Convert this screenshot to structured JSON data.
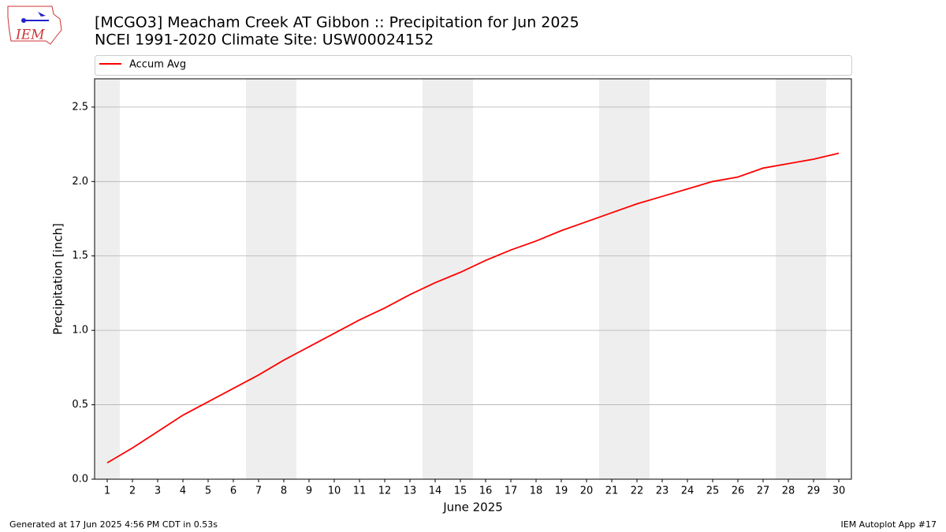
{
  "logo_text": "IEM",
  "footer_left": "Generated at 17 Jun 2025 4:56 PM CDT in 0.53s",
  "footer_right": "IEM Autoplot App #17",
  "chart_data": {
    "type": "line",
    "title": "[MCGO3] Meacham Creek  AT Gibbon :: Precipitation for Jun 2025",
    "subtitle": "NCEI 1991-2020 Climate Site: USW00024152",
    "xlabel": "June 2025",
    "ylabel": "Precipitation [inch]",
    "x": [
      1,
      2,
      3,
      4,
      5,
      6,
      7,
      8,
      9,
      10,
      11,
      12,
      13,
      14,
      15,
      16,
      17,
      18,
      19,
      20,
      21,
      22,
      23,
      24,
      25,
      26,
      27,
      28,
      29,
      30
    ],
    "series": [
      {
        "name": "Accum Avg",
        "color": "#ff0000",
        "values": [
          0.11,
          0.21,
          0.32,
          0.43,
          0.52,
          0.61,
          0.7,
          0.8,
          0.89,
          0.98,
          1.07,
          1.15,
          1.24,
          1.32,
          1.39,
          1.47,
          1.54,
          1.6,
          1.67,
          1.73,
          1.79,
          1.85,
          1.9,
          1.95,
          2.0,
          2.03,
          2.09,
          2.12,
          2.15,
          2.19
        ]
      }
    ],
    "xlim": [
      0.5,
      30.5
    ],
    "xticks": [
      1,
      2,
      3,
      4,
      5,
      6,
      7,
      8,
      9,
      10,
      11,
      12,
      13,
      14,
      15,
      16,
      17,
      18,
      19,
      20,
      21,
      22,
      23,
      24,
      25,
      26,
      27,
      28,
      29,
      30
    ],
    "ylim": [
      0,
      2.69
    ],
    "yticks": [
      {
        "value": 0,
        "label": "0.0"
      },
      0.5,
      {
        "value": 1,
        "label": "1.0"
      },
      1.5,
      {
        "value": 2,
        "label": "2.0"
      },
      2.5
    ],
    "grid": true,
    "shaded_spans": [
      [
        0.5,
        1.5
      ],
      [
        6.5,
        8.5
      ],
      [
        13.5,
        15.5
      ],
      [
        20.5,
        22.5
      ],
      [
        27.5,
        29.5
      ]
    ],
    "shade_color": "#eeeeee",
    "legend": "top"
  }
}
